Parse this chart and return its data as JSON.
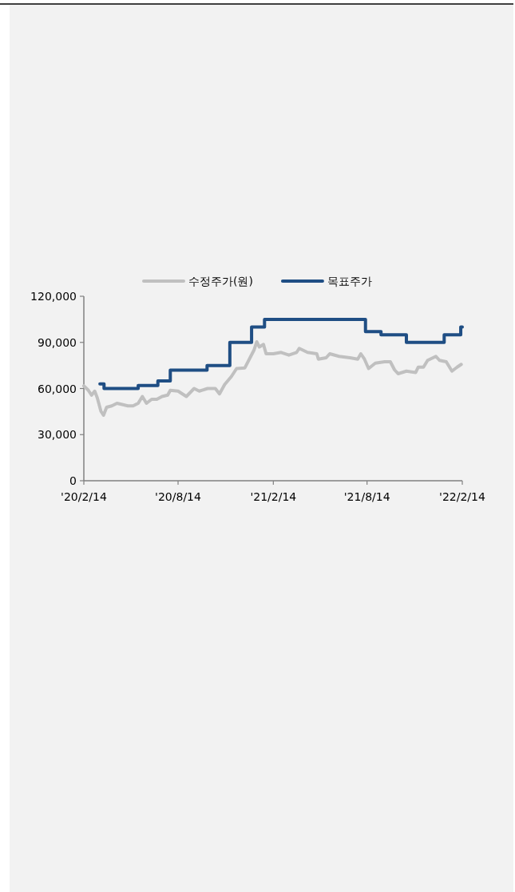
{
  "chart_data": {
    "type": "line",
    "series": [
      {
        "name": "수정주가(원)",
        "color": "#c0c0c0",
        "x": [
          "2020-02-14",
          "2020-02-22",
          "2020-02-29",
          "2020-03-06",
          "2020-03-11",
          "2020-03-18",
          "2020-03-23",
          "2020-03-29",
          "2020-04-08",
          "2020-04-18",
          "2020-04-28",
          "2020-05-09",
          "2020-05-19",
          "2020-05-29",
          "2020-06-06",
          "2020-06-14",
          "2020-06-24",
          "2020-07-04",
          "2020-07-14",
          "2020-07-25",
          "2020-07-30",
          "2020-08-14",
          "2020-08-30",
          "2020-09-14",
          "2020-09-24",
          "2020-10-10",
          "2020-10-25",
          "2020-11-02",
          "2020-11-12",
          "2020-11-25",
          "2020-12-05",
          "2020-12-21",
          "2020-12-31",
          "2021-01-08",
          "2021-01-13",
          "2021-01-18",
          "2021-01-26",
          "2021-01-31",
          "2021-02-14",
          "2021-03-01",
          "2021-03-16",
          "2021-03-31",
          "2021-04-05",
          "2021-04-21",
          "2021-05-09",
          "2021-05-12",
          "2021-05-27",
          "2021-06-03",
          "2021-06-21",
          "2021-07-12",
          "2021-07-27",
          "2021-08-02",
          "2021-08-09",
          "2021-08-17",
          "2021-08-30",
          "2021-09-17",
          "2021-09-28",
          "2021-10-06",
          "2021-10-13",
          "2021-10-29",
          "2021-11-16",
          "2021-11-21",
          "2021-12-01",
          "2021-12-09",
          "2021-12-25",
          "2022-01-01",
          "2022-01-14",
          "2022-01-25",
          "2022-02-04",
          "2022-02-12"
        ],
        "values": [
          61700,
          59100,
          55700,
          58300,
          53900,
          45200,
          42600,
          47800,
          48700,
          50400,
          49600,
          48700,
          48700,
          50400,
          54800,
          50400,
          53000,
          53000,
          54800,
          55700,
          58800,
          58300,
          54800,
          60000,
          58300,
          60000,
          60000,
          56500,
          62600,
          67800,
          73000,
          73400,
          80000,
          85200,
          90400,
          87000,
          88700,
          82600,
          82600,
          83500,
          81700,
          83500,
          86100,
          83500,
          82600,
          79100,
          80000,
          82600,
          80900,
          80000,
          79100,
          82600,
          79100,
          73000,
          76500,
          77400,
          77400,
          72200,
          69600,
          71300,
          70400,
          73900,
          73900,
          78300,
          80900,
          78300,
          77400,
          71300,
          73900,
          75700
        ]
      },
      {
        "name": "목표주가",
        "color": "#1f4e84",
        "type": "step",
        "x": [
          "2020-03-16",
          "2020-03-24",
          "2020-05-29",
          "2020-07-06",
          "2020-07-30",
          "2020-10-09",
          "2020-11-22",
          "2021-01-03",
          "2021-01-28",
          "2021-08-11",
          "2021-09-10",
          "2021-10-29",
          "2022-01-10",
          "2022-02-11",
          "2022-02-14"
        ],
        "values": [
          63000,
          60000,
          62000,
          65000,
          72000,
          75000,
          90000,
          100000,
          105000,
          97000,
          95000,
          90000,
          95000,
          100000,
          100000
        ]
      }
    ],
    "xlim": [
      "2020-02-14",
      "2022-02-14"
    ],
    "xticks": [
      {
        "value": "2020-02-14",
        "label": "'20/2/14"
      },
      {
        "value": "2020-08-14",
        "label": "'20/8/14"
      },
      {
        "value": "2021-02-14",
        "label": "'21/2/14"
      },
      {
        "value": "2021-08-14",
        "label": "'21/8/14"
      },
      {
        "value": "2022-02-14",
        "label": "'22/2/14"
      }
    ],
    "ylim": [
      0,
      120000
    ],
    "yticks": [
      {
        "value": 0,
        "label": "0"
      },
      {
        "value": 30000,
        "label": "30,000"
      },
      {
        "value": 60000,
        "label": "60,000"
      },
      {
        "value": 90000,
        "label": "90,000"
      },
      {
        "value": 120000,
        "label": "120,000"
      }
    ],
    "legend": "top"
  }
}
